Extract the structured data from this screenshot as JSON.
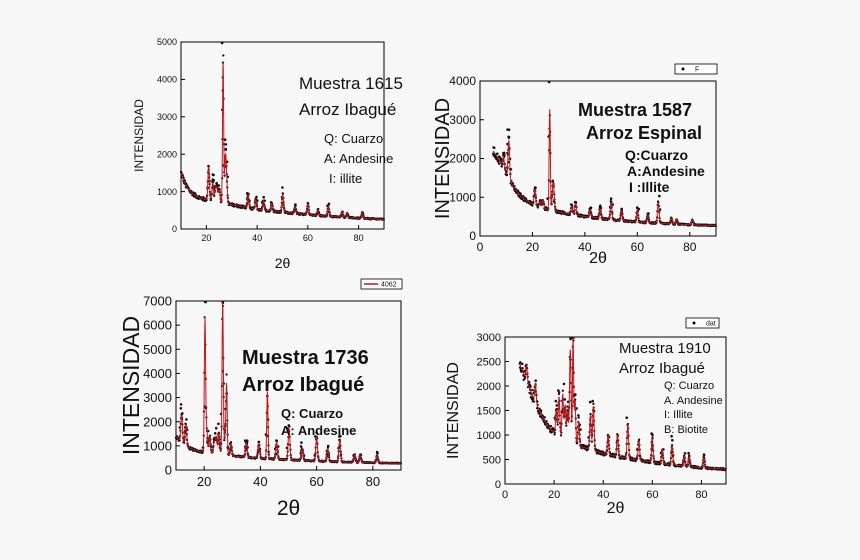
{
  "chart_data": [
    {
      "type": "scatter",
      "xlabel": "2θ",
      "ylabel": "INTENSIDAD",
      "xlim": [
        10,
        90
      ],
      "ylim": [
        0,
        5000
      ],
      "x_ticks": [
        "20",
        "40",
        "60",
        "80"
      ],
      "y_ticks": [
        "0",
        "1000",
        "2000",
        "3000",
        "4000",
        "5000"
      ],
      "annotations": [
        "Muestra 1615",
        "Arroz Ibagué",
        "Q: Cuarzo",
        "A: Andesine",
        "I: illite"
      ],
      "legend": null,
      "background": [
        [
          10,
          1500
        ],
        [
          12,
          1150
        ],
        [
          14,
          980
        ],
        [
          16,
          880
        ],
        [
          18,
          820
        ],
        [
          20,
          780
        ],
        [
          25,
          720
        ],
        [
          30,
          650
        ],
        [
          40,
          520
        ],
        [
          50,
          450
        ],
        [
          60,
          380
        ],
        [
          70,
          330
        ],
        [
          80,
          290
        ],
        [
          90,
          260
        ]
      ],
      "peaks": [
        [
          20.9,
          900
        ],
        [
          22.5,
          500
        ],
        [
          23.6,
          400
        ],
        [
          24.3,
          350
        ],
        [
          25.1,
          300
        ],
        [
          26.6,
          3800
        ],
        [
          27.5,
          1200
        ],
        [
          28.0,
          500
        ],
        [
          36.5,
          350
        ],
        [
          39.5,
          250
        ],
        [
          42.5,
          250
        ],
        [
          45.8,
          200
        ],
        [
          50.1,
          500
        ],
        [
          55,
          180
        ],
        [
          60,
          300
        ],
        [
          64,
          150
        ],
        [
          68.1,
          250
        ],
        [
          73.5,
          150
        ],
        [
          75.5,
          120
        ],
        [
          81.5,
          150
        ]
      ],
      "series_colors": {
        "points": "#111111",
        "fit": "#c0171c"
      }
    },
    {
      "type": "scatter",
      "xlabel": "2θ",
      "ylabel": "INTENSIDAD",
      "xlim": [
        0,
        90
      ],
      "ylim": [
        0,
        4000
      ],
      "x_ticks": [
        "0",
        "20",
        "40",
        "60",
        "80"
      ],
      "y_ticks": [
        "0",
        "1000",
        "2000",
        "3000",
        "4000"
      ],
      "annotations": [
        "Muestra  1587",
        "Arroz Espinal",
        "Q:Cuarzo",
        "A:Andesine",
        "I :Illite"
      ],
      "legend": "F",
      "background": [
        [
          5,
          2200
        ],
        [
          8,
          1900
        ],
        [
          10,
          1600
        ],
        [
          12,
          1350
        ],
        [
          14,
          1150
        ],
        [
          16,
          1000
        ],
        [
          18,
          900
        ],
        [
          20,
          820
        ],
        [
          25,
          700
        ],
        [
          30,
          620
        ],
        [
          40,
          500
        ],
        [
          50,
          420
        ],
        [
          60,
          360
        ],
        [
          70,
          320
        ],
        [
          80,
          290
        ],
        [
          90,
          270
        ]
      ],
      "peaks": [
        [
          9,
          300
        ],
        [
          11,
          1000
        ],
        [
          20.9,
          400
        ],
        [
          23,
          150
        ],
        [
          24,
          200
        ],
        [
          26.6,
          2600
        ],
        [
          27.8,
          600
        ],
        [
          28.2,
          300
        ],
        [
          35,
          200
        ],
        [
          36.5,
          300
        ],
        [
          42,
          200
        ],
        [
          45.8,
          250
        ],
        [
          50,
          450
        ],
        [
          54,
          250
        ],
        [
          60,
          300
        ],
        [
          64,
          200
        ],
        [
          68,
          550
        ],
        [
          73,
          150
        ],
        [
          75,
          120
        ],
        [
          81,
          120
        ]
      ],
      "series_colors": {
        "points": "#111111",
        "fit": "#c0171c"
      }
    },
    {
      "type": "scatter",
      "xlabel": "2θ",
      "ylabel": "INTENSIDAD",
      "xlim": [
        10,
        90
      ],
      "ylim": [
        0,
        7000
      ],
      "x_ticks": [
        "20",
        "40",
        "60",
        "80"
      ],
      "y_ticks": [
        "0",
        "1000",
        "2000",
        "3000",
        "4000",
        "5000",
        "6000",
        "7000"
      ],
      "annotations": [
        "Muestra   1736",
        "Arroz Ibagué",
        "Q: Cuarzo",
        "A: Andesine"
      ],
      "legend": "4062",
      "background": [
        [
          10,
          1400
        ],
        [
          12,
          1100
        ],
        [
          14,
          950
        ],
        [
          16,
          850
        ],
        [
          18,
          780
        ],
        [
          20,
          730
        ],
        [
          25,
          650
        ],
        [
          30,
          580
        ],
        [
          40,
          480
        ],
        [
          50,
          420
        ],
        [
          60,
          370
        ],
        [
          70,
          330
        ],
        [
          80,
          300
        ],
        [
          90,
          280
        ]
      ],
      "peaks": [
        [
          12,
          1200
        ],
        [
          13.5,
          900
        ],
        [
          20.3,
          5500
        ],
        [
          20.9,
          1000
        ],
        [
          22,
          700
        ],
        [
          23.6,
          500
        ],
        [
          24.3,
          700
        ],
        [
          25.3,
          900
        ],
        [
          26.6,
          6400
        ],
        [
          27.5,
          800
        ],
        [
          28,
          2800
        ],
        [
          29.5,
          500
        ],
        [
          35,
          600
        ],
        [
          39.5,
          600
        ],
        [
          42.5,
          2800
        ],
        [
          45.8,
          700
        ],
        [
          50.2,
          1300
        ],
        [
          54.9,
          500
        ],
        [
          60,
          1000
        ],
        [
          64,
          500
        ],
        [
          68.2,
          900
        ],
        [
          73.5,
          300
        ],
        [
          75.5,
          300
        ],
        [
          81.5,
          300
        ]
      ],
      "series_colors": {
        "points": "#111111",
        "fit": "#c0171c"
      }
    },
    {
      "type": "scatter",
      "xlabel": "2θ",
      "ylabel": "INTENSIDAD",
      "xlim": [
        0,
        90
      ],
      "ylim": [
        0,
        3000
      ],
      "x_ticks": [
        "0",
        "20",
        "40",
        "60",
        "80"
      ],
      "y_ticks": [
        "0",
        "500",
        "1000",
        "1500",
        "2000",
        "2500",
        "3000"
      ],
      "annotations": [
        "Muestra 1910",
        "Arroz Ibagué",
        "Q: Cuarzo",
        "A. Andesine",
        "I: Illite",
        "B: Biotite"
      ],
      "legend": "dat",
      "background": [
        [
          6,
          2450
        ],
        [
          8,
          2200
        ],
        [
          10,
          1950
        ],
        [
          12,
          1700
        ],
        [
          14,
          1500
        ],
        [
          16,
          1300
        ],
        [
          18,
          1150
        ],
        [
          20,
          1050
        ],
        [
          25,
          900
        ],
        [
          30,
          780
        ],
        [
          40,
          620
        ],
        [
          50,
          520
        ],
        [
          60,
          440
        ],
        [
          70,
          380
        ],
        [
          80,
          330
        ],
        [
          90,
          300
        ]
      ],
      "peaks": [
        [
          8.8,
          300
        ],
        [
          12.4,
          400
        ],
        [
          20.9,
          500
        ],
        [
          22,
          800
        ],
        [
          23.5,
          900
        ],
        [
          24.5,
          700
        ],
        [
          25.5,
          600
        ],
        [
          26.6,
          1900
        ],
        [
          27.7,
          2200
        ],
        [
          28.5,
          900
        ],
        [
          30,
          500
        ],
        [
          34.8,
          700
        ],
        [
          36,
          900
        ],
        [
          42,
          400
        ],
        [
          45.8,
          450
        ],
        [
          50,
          700
        ],
        [
          54.5,
          400
        ],
        [
          60,
          500
        ],
        [
          64,
          300
        ],
        [
          68,
          400
        ],
        [
          73,
          200
        ],
        [
          75,
          200
        ],
        [
          81,
          200
        ]
      ],
      "series_colors": {
        "points": "#111111",
        "fit": "#c0171c"
      }
    }
  ]
}
